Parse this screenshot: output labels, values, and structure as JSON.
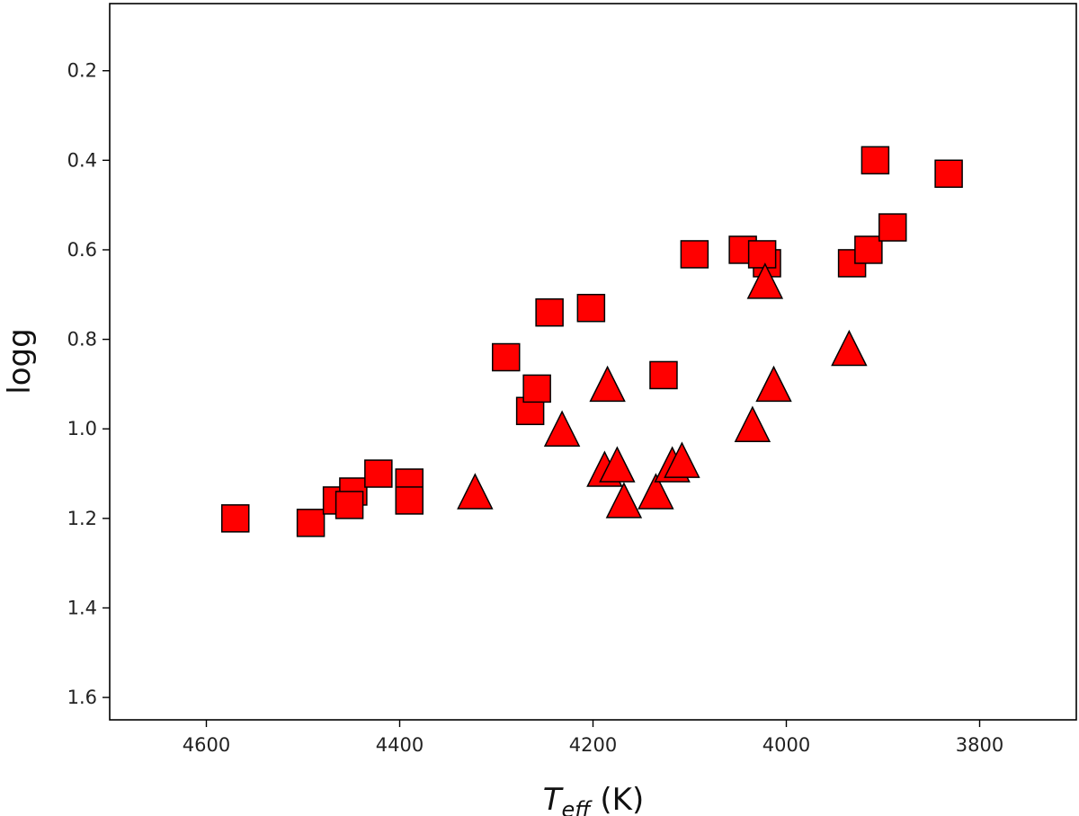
{
  "chart_data": {
    "type": "scatter",
    "title": "",
    "xlabel": {
      "main": "T",
      "subscript": "eff",
      "unit": " (K)"
    },
    "ylabel": "logg",
    "xlim": [
      4700,
      3700
    ],
    "ylim": [
      1.65,
      0.05
    ],
    "x_inverted": true,
    "y_inverted": true,
    "grid": false,
    "xticks": [
      4600,
      4400,
      4200,
      4000,
      3800
    ],
    "xtick_labels": [
      "4600",
      "4400",
      "4200",
      "4000",
      "3800"
    ],
    "yticks": [
      0.2,
      0.4,
      0.6,
      0.8,
      1.0,
      1.2,
      1.4,
      1.6
    ],
    "ytick_labels": [
      "0.2",
      "0.4",
      "0.6",
      "0.8",
      "1.0",
      "1.2",
      "1.4",
      "1.6"
    ],
    "series": [
      {
        "marker": "square",
        "color": "#ff0000",
        "edgecolor": "#000000",
        "points": [
          [
            4570,
            1.2
          ],
          [
            4492,
            1.21
          ],
          [
            4465,
            1.16
          ],
          [
            4448,
            1.14
          ],
          [
            4452,
            1.17
          ],
          [
            4422,
            1.1
          ],
          [
            4390,
            1.12
          ],
          [
            4390,
            1.16
          ],
          [
            4290,
            0.84
          ],
          [
            4265,
            0.96
          ],
          [
            4258,
            0.91
          ],
          [
            4245,
            0.74
          ],
          [
            4202,
            0.73
          ],
          [
            4127,
            0.88
          ],
          [
            4095,
            0.61
          ],
          [
            4045,
            0.6
          ],
          [
            4020,
            0.63
          ],
          [
            4025,
            0.61
          ],
          [
            3932,
            0.63
          ],
          [
            3915,
            0.6
          ],
          [
            3908,
            0.4
          ],
          [
            3890,
            0.55
          ],
          [
            3832,
            0.43
          ]
        ]
      },
      {
        "marker": "triangle",
        "color": "#ff0000",
        "edgecolor": "#000000",
        "points": [
          [
            4322,
            1.15
          ],
          [
            4232,
            1.01
          ],
          [
            4185,
            0.91
          ],
          [
            4188,
            1.1
          ],
          [
            4175,
            1.09
          ],
          [
            4168,
            1.17
          ],
          [
            4135,
            1.15
          ],
          [
            4118,
            1.09
          ],
          [
            4108,
            1.08
          ],
          [
            4035,
            1.0
          ],
          [
            4022,
            0.68
          ],
          [
            4013,
            0.91
          ],
          [
            3935,
            0.83
          ]
        ]
      }
    ]
  }
}
